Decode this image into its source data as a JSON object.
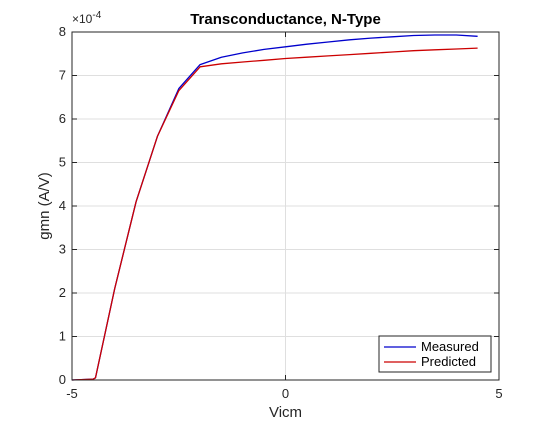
{
  "chart_data": {
    "type": "line",
    "title": "Transconductance, N-Type",
    "xlabel": "Vicm",
    "ylabel": "gmn (A/V)",
    "y_exponent": "×10",
    "y_exponent_power": "-4",
    "xlim": [
      -5,
      5
    ],
    "ylim": [
      0,
      8
    ],
    "xticks": [
      -5,
      0,
      5
    ],
    "xtick_labels": [
      "-5",
      "0",
      "5"
    ],
    "yticks": [
      0,
      1,
      2,
      3,
      4,
      5,
      6,
      7,
      8
    ],
    "ytick_labels": [
      "0",
      "1",
      "2",
      "3",
      "4",
      "5",
      "6",
      "7",
      "8"
    ],
    "grid": true,
    "legend_location": "bottom-right",
    "series": [
      {
        "name": "Measured",
        "color": "#0000cc",
        "x": [
          -5,
          -4.5,
          -4.45,
          -4,
          -3.5,
          -3,
          -2.5,
          -2,
          -1.5,
          -1,
          -0.5,
          0,
          0.5,
          1,
          1.5,
          2,
          2.5,
          3,
          3.5,
          4,
          4.5
        ],
        "y": [
          0,
          0.02,
          0.05,
          2.1,
          4.1,
          5.6,
          6.7,
          7.25,
          7.42,
          7.52,
          7.6,
          7.66,
          7.72,
          7.77,
          7.82,
          7.86,
          7.89,
          7.92,
          7.93,
          7.93,
          7.9
        ]
      },
      {
        "name": "Predicted",
        "color": "#cc0000",
        "x": [
          -5,
          -4.5,
          -4.45,
          -4,
          -3.5,
          -3,
          -2.5,
          -2,
          -1.5,
          -1,
          -0.5,
          0,
          0.5,
          1,
          1.5,
          2,
          2.5,
          3,
          3.5,
          4,
          4.5
        ],
        "y": [
          0,
          0.02,
          0.05,
          2.1,
          4.1,
          5.6,
          6.65,
          7.2,
          7.27,
          7.31,
          7.35,
          7.39,
          7.42,
          7.45,
          7.48,
          7.51,
          7.54,
          7.57,
          7.59,
          7.61,
          7.63
        ]
      }
    ]
  }
}
